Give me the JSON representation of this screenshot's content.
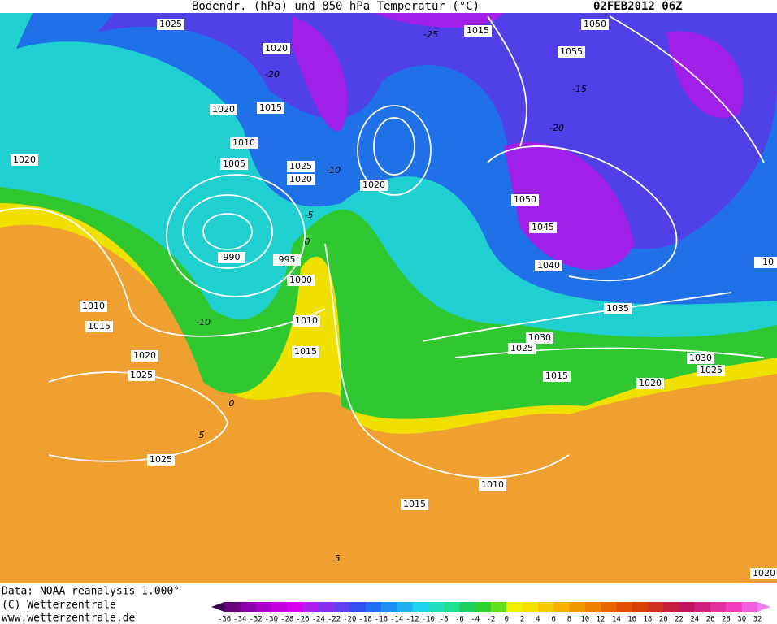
{
  "header": {
    "title": "Bodendr. (hPa) und 850 hPa Temperatur (°C)",
    "date": "02FEB2012 06Z"
  },
  "footer": {
    "lines": [
      "Data: NOAA reanalysis 1.000°",
      "(C) Wetterzentrale",
      "www.wetterzentrale.de"
    ]
  },
  "colorbar": {
    "labels": [
      -36,
      -34,
      -32,
      -30,
      -28,
      -26,
      -24,
      -22,
      -20,
      -18,
      -16,
      -14,
      -12,
      -10,
      -8,
      -6,
      -4,
      -2,
      0,
      2,
      4,
      6,
      8,
      10,
      12,
      14,
      16,
      18,
      20,
      22,
      24,
      26,
      28,
      30,
      32
    ],
    "colors": [
      "#3c0050",
      "#6a0080",
      "#8a00a8",
      "#a800c8",
      "#c400e0",
      "#d800f0",
      "#b020f0",
      "#8a30f0",
      "#6040f0",
      "#3050f0",
      "#2070f0",
      "#2090f0",
      "#20b0f0",
      "#20d0f0",
      "#20e0c0",
      "#20e090",
      "#20d060",
      "#30d030",
      "#60e020",
      "#f0f000",
      "#f8e000",
      "#f8c800",
      "#f8b000",
      "#f09800",
      "#f08000",
      "#e86800",
      "#e05000",
      "#d84000",
      "#d03020",
      "#c82040",
      "#c01860",
      "#d02080",
      "#e030a0",
      "#f040c0",
      "#f060e0",
      "#f080f0"
    ]
  },
  "isobar_labels": [
    "1025",
    "1020",
    "1015",
    "1050",
    "1055",
    "1020",
    "1015",
    "1010",
    "1005",
    "1025",
    "1020",
    "1020",
    "1020",
    "1050",
    "1045",
    "1040",
    "990",
    "995",
    "1000",
    "1010",
    "1015",
    "1010",
    "1015",
    "1020",
    "1025",
    "1035",
    "1030",
    "1025",
    "1015",
    "1020",
    "1030",
    "1025",
    "1025",
    "1010",
    "1015",
    "1020",
    "10"
  ],
  "temperature_labels": [
    "-25",
    "-20",
    "-15",
    "-20",
    "-10",
    "-5",
    "0",
    "-10",
    "0",
    "5",
    "5"
  ]
}
